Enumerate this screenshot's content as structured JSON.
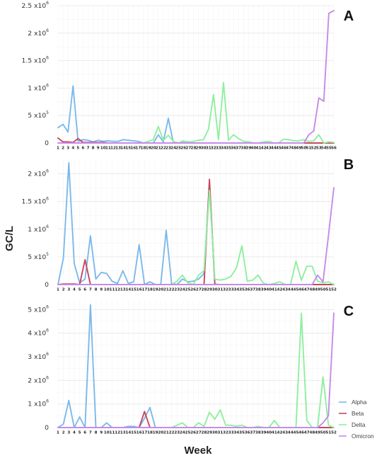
{
  "ylabel": "GC/L",
  "xlabel": "Week",
  "legend": {
    "placement": "bottom-right",
    "items": [
      {
        "name": "Alpha",
        "color": "#7cb9ea"
      },
      {
        "name": "Beta",
        "color": "#c8465e"
      },
      {
        "name": "Delta",
        "color": "#8fef9f"
      },
      {
        "name": "Omicron",
        "color": "#c68be9"
      }
    ]
  },
  "chart_data": [
    {
      "type": "line",
      "panel": "A",
      "ylim": [
        0,
        2500000
      ],
      "yticks": [
        {
          "value": 0,
          "mant": "0",
          "exp": ""
        },
        {
          "value": 500000,
          "mant": "5 x10",
          "exp": "5"
        },
        {
          "value": 1000000,
          "mant": "1 x10",
          "exp": "6"
        },
        {
          "value": 1500000,
          "mant": "1.5 x10",
          "exp": "6"
        },
        {
          "value": 2000000,
          "mant": "2 x10",
          "exp": "6"
        },
        {
          "value": 2500000,
          "mant": "2.5 x10",
          "exp": "6"
        }
      ],
      "x": [
        1,
        2,
        3,
        4,
        5,
        6,
        7,
        8,
        9,
        10,
        11,
        12,
        13,
        14,
        15,
        16,
        17,
        18,
        19,
        20,
        21,
        22,
        23,
        24,
        25,
        26,
        27,
        28,
        29,
        30,
        31,
        32,
        33,
        34,
        35,
        36,
        37,
        38,
        39,
        40,
        41,
        42,
        43,
        44,
        45,
        46,
        47,
        48,
        49,
        50,
        51,
        52,
        53,
        54,
        55,
        56
      ],
      "xticklabels": [
        "1",
        "2",
        "3",
        "4",
        "5",
        "6",
        "7",
        "8",
        "9",
        "10",
        "11",
        "12",
        "13",
        "14",
        "15",
        "16",
        "17",
        "18",
        "19",
        "20",
        "21",
        "22",
        "23",
        "24",
        "25",
        "26",
        "27",
        "28",
        "29",
        "30",
        "31",
        "32",
        "33",
        "34",
        "35",
        "36",
        "37",
        "38",
        "39",
        "40",
        "41",
        "42",
        "43",
        "44",
        "45",
        "46",
        "47",
        "48",
        "49",
        "50",
        "51",
        "52",
        "53",
        "54",
        "55",
        "56"
      ],
      "series": [
        {
          "name": "Alpha",
          "values": [
            280000,
            340000,
            200000,
            1040000,
            30000,
            60000,
            50000,
            20000,
            50000,
            30000,
            40000,
            30000,
            30000,
            60000,
            50000,
            40000,
            30000,
            0,
            0,
            0,
            150000,
            20000,
            450000,
            0,
            0,
            30000,
            20000,
            0,
            0,
            0,
            0,
            0,
            0,
            0,
            0,
            0,
            0,
            0,
            0,
            0,
            0,
            0,
            0,
            0,
            0,
            0,
            0,
            0,
            0,
            0,
            0,
            0,
            0,
            0,
            0,
            0
          ]
        },
        {
          "name": "Beta",
          "values": [
            90000,
            20000,
            20000,
            10000,
            80000,
            10000,
            10000,
            10000,
            10000,
            10000,
            0,
            0,
            0,
            0,
            0,
            0,
            0,
            0,
            0,
            0,
            0,
            0,
            0,
            0,
            0,
            0,
            0,
            0,
            0,
            0,
            0,
            0,
            0,
            0,
            0,
            0,
            0,
            0,
            0,
            0,
            0,
            0,
            0,
            0,
            0,
            0,
            0,
            0,
            0,
            0,
            0,
            0,
            0,
            0,
            0,
            0
          ]
        },
        {
          "name": "Delta",
          "values": [
            0,
            0,
            0,
            0,
            0,
            0,
            0,
            0,
            0,
            0,
            0,
            0,
            0,
            0,
            0,
            0,
            0,
            0,
            30000,
            60000,
            300000,
            50000,
            140000,
            30000,
            0,
            40000,
            10000,
            30000,
            50000,
            60000,
            250000,
            880000,
            60000,
            1100000,
            50000,
            150000,
            80000,
            30000,
            20000,
            0,
            0,
            20000,
            30000,
            0,
            0,
            70000,
            60000,
            40000,
            40000,
            60000,
            30000,
            40000,
            150000,
            0,
            20000,
            10000
          ]
        },
        {
          "name": "Omicron",
          "values": [
            0,
            0,
            0,
            0,
            0,
            0,
            0,
            0,
            0,
            0,
            0,
            0,
            0,
            0,
            0,
            0,
            0,
            0,
            0,
            0,
            0,
            0,
            0,
            0,
            0,
            0,
            0,
            0,
            0,
            0,
            0,
            0,
            0,
            0,
            0,
            0,
            0,
            0,
            0,
            0,
            0,
            0,
            0,
            0,
            0,
            0,
            0,
            0,
            0,
            0,
            150000,
            220000,
            820000,
            760000,
            2360000,
            2410000
          ]
        }
      ]
    },
    {
      "type": "line",
      "panel": "B",
      "ylim": [
        0,
        2250000
      ],
      "yticks": [
        {
          "value": 0,
          "mant": "0",
          "exp": ""
        },
        {
          "value": 500000,
          "mant": "5 x10",
          "exp": "5"
        },
        {
          "value": 1000000,
          "mant": "1 x10",
          "exp": "6"
        },
        {
          "value": 1500000,
          "mant": "1.5 x10",
          "exp": "6"
        },
        {
          "value": 2000000,
          "mant": "2 x10",
          "exp": "6"
        }
      ],
      "x": [
        1,
        2,
        3,
        4,
        5,
        6,
        7,
        8,
        9,
        10,
        11,
        12,
        13,
        14,
        15,
        16,
        17,
        18,
        19,
        20,
        21,
        22,
        23,
        24,
        25,
        26,
        27,
        28,
        29,
        30,
        31,
        32,
        33,
        34,
        35,
        36,
        37,
        38,
        39,
        40,
        41,
        42,
        43,
        44,
        45,
        46,
        47,
        48,
        49,
        50,
        51,
        52
      ],
      "xticklabels": [
        "1",
        "2",
        "3",
        "4",
        "5",
        "6",
        "7",
        "8",
        "9",
        "10",
        "11",
        "12",
        "13",
        "14",
        "15",
        "16",
        "17",
        "18",
        "19",
        "20",
        "21",
        "22",
        "23",
        "24",
        "25",
        "26",
        "27",
        "28",
        "29",
        "30",
        "31",
        "32",
        "33",
        "34",
        "35",
        "36",
        "37",
        "38",
        "39",
        "40",
        "41",
        "42",
        "43",
        "44",
        "45",
        "46",
        "47",
        "48",
        "49",
        "50",
        "51",
        "52"
      ],
      "series": [
        {
          "name": "Alpha",
          "values": [
            0,
            480000,
            2200000,
            380000,
            30000,
            100000,
            880000,
            100000,
            220000,
            200000,
            60000,
            20000,
            250000,
            20000,
            50000,
            720000,
            0,
            50000,
            0,
            0,
            980000,
            20000,
            0,
            100000,
            50000,
            60000,
            100000,
            200000,
            1850000,
            10000,
            0,
            0,
            0,
            0,
            0,
            0,
            0,
            0,
            0,
            0,
            0,
            0,
            0,
            0,
            0,
            0,
            0,
            0,
            0,
            0,
            0,
            0
          ]
        },
        {
          "name": "Beta",
          "values": [
            0,
            10000,
            10000,
            10000,
            0,
            450000,
            0,
            0,
            0,
            0,
            0,
            0,
            0,
            0,
            0,
            0,
            0,
            0,
            0,
            0,
            0,
            0,
            0,
            0,
            0,
            0,
            0,
            0,
            1900000,
            0,
            0,
            0,
            0,
            0,
            0,
            0,
            0,
            0,
            0,
            0,
            0,
            0,
            0,
            0,
            0,
            0,
            0,
            0,
            0,
            0,
            0,
            0
          ]
        },
        {
          "name": "Delta",
          "values": [
            0,
            0,
            0,
            0,
            0,
            0,
            0,
            0,
            0,
            0,
            0,
            0,
            0,
            0,
            0,
            0,
            0,
            0,
            0,
            0,
            0,
            0,
            60000,
            170000,
            30000,
            0,
            170000,
            250000,
            1700000,
            100000,
            80000,
            100000,
            150000,
            300000,
            700000,
            60000,
            80000,
            170000,
            20000,
            0,
            20000,
            50000,
            0,
            0,
            420000,
            80000,
            330000,
            330000,
            60000,
            30000,
            50000,
            0
          ]
        },
        {
          "name": "Omicron",
          "values": [
            0,
            0,
            0,
            0,
            0,
            0,
            0,
            0,
            0,
            0,
            0,
            0,
            0,
            0,
            0,
            0,
            0,
            0,
            0,
            0,
            0,
            0,
            0,
            0,
            0,
            0,
            0,
            0,
            0,
            0,
            0,
            0,
            0,
            0,
            0,
            0,
            0,
            0,
            0,
            0,
            0,
            0,
            0,
            0,
            0,
            0,
            0,
            0,
            170000,
            50000,
            880000,
            1750000
          ]
        }
      ]
    },
    {
      "type": "line",
      "panel": "C",
      "ylim": [
        0,
        5400000
      ],
      "yticks": [
        {
          "value": 0,
          "mant": "0",
          "exp": ""
        },
        {
          "value": 1000000,
          "mant": "1 x10",
          "exp": "6"
        },
        {
          "value": 2000000,
          "mant": "2 x10",
          "exp": "6"
        },
        {
          "value": 3000000,
          "mant": "3 x10",
          "exp": "6"
        },
        {
          "value": 4000000,
          "mant": "4 x10",
          "exp": "6"
        },
        {
          "value": 5000000,
          "mant": "5 x10",
          "exp": "6"
        }
      ],
      "x": [
        1,
        2,
        3,
        4,
        5,
        6,
        7,
        8,
        9,
        10,
        11,
        12,
        13,
        14,
        15,
        16,
        17,
        18,
        19,
        20,
        21,
        22,
        23,
        24,
        25,
        26,
        27,
        28,
        29,
        30,
        31,
        32,
        33,
        34,
        35,
        36,
        37,
        38,
        39,
        40,
        41,
        42,
        43,
        44,
        45,
        46,
        47,
        48,
        49,
        50,
        51,
        52
      ],
      "xticklabels": [
        "1",
        "2",
        "3",
        "4",
        "5",
        "6",
        "7",
        "8",
        "9",
        "10",
        "11",
        "12",
        "13",
        "14",
        "15",
        "16",
        "17",
        "18",
        "19",
        "20",
        "21",
        "22",
        "23",
        "24",
        "25",
        "26",
        "27",
        "28",
        "29",
        "30",
        "31",
        "32",
        "33",
        "34",
        "35",
        "36",
        "37",
        "38",
        "39",
        "40",
        "41",
        "42",
        "43",
        "44",
        "45",
        "46",
        "47",
        "48",
        "49",
        "50",
        "51",
        "52"
      ],
      "series": [
        {
          "name": "Alpha",
          "values": [
            0,
            150000,
            1150000,
            0,
            450000,
            0,
            5200000,
            0,
            0,
            200000,
            0,
            0,
            0,
            50000,
            50000,
            0,
            400000,
            850000,
            0,
            0,
            0,
            0,
            0,
            0,
            0,
            0,
            0,
            0,
            0,
            0,
            0,
            0,
            0,
            0,
            0,
            0,
            0,
            0,
            0,
            0,
            0,
            0,
            0,
            0,
            0,
            0,
            0,
            0,
            0,
            0,
            0,
            0
          ]
        },
        {
          "name": "Beta",
          "values": [
            0,
            0,
            0,
            0,
            0,
            0,
            0,
            0,
            0,
            0,
            0,
            0,
            0,
            0,
            0,
            0,
            680000,
            0,
            0,
            0,
            0,
            0,
            0,
            0,
            0,
            0,
            0,
            0,
            0,
            0,
            0,
            0,
            0,
            0,
            0,
            0,
            0,
            0,
            0,
            0,
            0,
            0,
            0,
            0,
            0,
            0,
            0,
            0,
            0,
            0,
            0,
            0
          ]
        },
        {
          "name": "Delta",
          "values": [
            0,
            0,
            0,
            0,
            0,
            0,
            0,
            0,
            0,
            0,
            0,
            0,
            0,
            0,
            0,
            0,
            0,
            0,
            0,
            0,
            0,
            0,
            100000,
            200000,
            0,
            0,
            200000,
            50000,
            650000,
            350000,
            750000,
            100000,
            100000,
            50000,
            100000,
            0,
            0,
            50000,
            0,
            0,
            300000,
            0,
            0,
            0,
            0,
            4850000,
            300000,
            0,
            0,
            2150000,
            100000,
            0
          ]
        },
        {
          "name": "Omicron",
          "values": [
            0,
            0,
            0,
            0,
            0,
            0,
            0,
            0,
            0,
            0,
            0,
            0,
            0,
            0,
            0,
            0,
            0,
            0,
            0,
            0,
            0,
            0,
            0,
            0,
            0,
            0,
            0,
            0,
            0,
            0,
            0,
            0,
            0,
            0,
            0,
            0,
            0,
            0,
            0,
            0,
            0,
            0,
            0,
            0,
            0,
            0,
            0,
            0,
            0,
            200000,
            500000,
            4850000
          ]
        }
      ]
    }
  ]
}
